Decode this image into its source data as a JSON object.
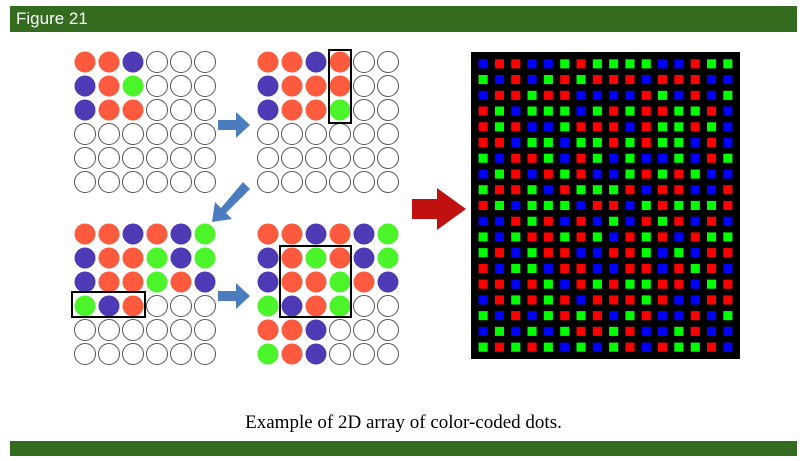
{
  "figure_label": "Figure 21",
  "caption": "Example of 2D array of color-coded dots.",
  "colors": {
    "red": "#fd5a3e",
    "blue": "#4d3ab4",
    "green": "#4cf52a",
    "empty_stroke": "#555555",
    "box_stroke": "#000000",
    "small_arrow": "#4a7cbf",
    "big_arrow": "#c01010",
    "header_green": "#336b1f",
    "dense_red": "#ff0000",
    "dense_green": "#00ff00",
    "dense_blue": "#0000ff",
    "dense_bg": "#000000"
  },
  "grids": [
    {
      "name": "grid-step-1",
      "rows": [
        "RRBEEE",
        "BRGEEE",
        "BRREEE",
        "EEEEEE",
        "EEEEEE",
        "EEEEEE"
      ]
    },
    {
      "name": "grid-step-2",
      "rows": [
        "RRBREE",
        "BRRREE",
        "BRRGEE",
        "EEEEEE",
        "EEEEEE",
        "EEEEEE"
      ]
    },
    {
      "name": "grid-step-3",
      "rows": [
        "RRBRBG",
        "BRRGBG",
        "BRRGRB",
        "GBREEE",
        "EEEEEE",
        "EEEEEE"
      ]
    },
    {
      "name": "grid-step-4",
      "rows": [
        "RRBRBG",
        "BRGRBG",
        "BRRGRB",
        "GBRGEE",
        "RRBEEE",
        "GRBEEE"
      ]
    }
  ],
  "dense_array": {
    "rows": [
      "BRRBBGRGGGGBBRGG",
      "GBRBGRGRRRBRRRBB",
      "BRRGRRBBBBRGBRBG",
      "RGBGGGBGRGRRGGRB",
      "RGRBBGRRRBRGGRGB",
      "RRBGGBGGRGRGGBRB",
      "GBRRGBRGBGBBGBRG",
      "BGRBRGRBBGRGRGBB",
      "GRRGBRGGGRBRRBBR",
      "RGBGGGBRRBGRGGGR",
      "BBRGRBRBGBRGRBRB",
      "GBGRRGRGBRGRBRGG",
      "GRBGRRBBRRGBGBRR",
      "RBGGBRRBBRRBRGRB",
      "RRBRGBRGRGGRRBGR",
      "BRGRGRBRRRGRBBRR",
      "GBRBGRGRBGRBBRBG",
      "BGBGBGRRGRBBGRBB",
      "GRGRGBGBGRBRGGRB"
    ]
  }
}
